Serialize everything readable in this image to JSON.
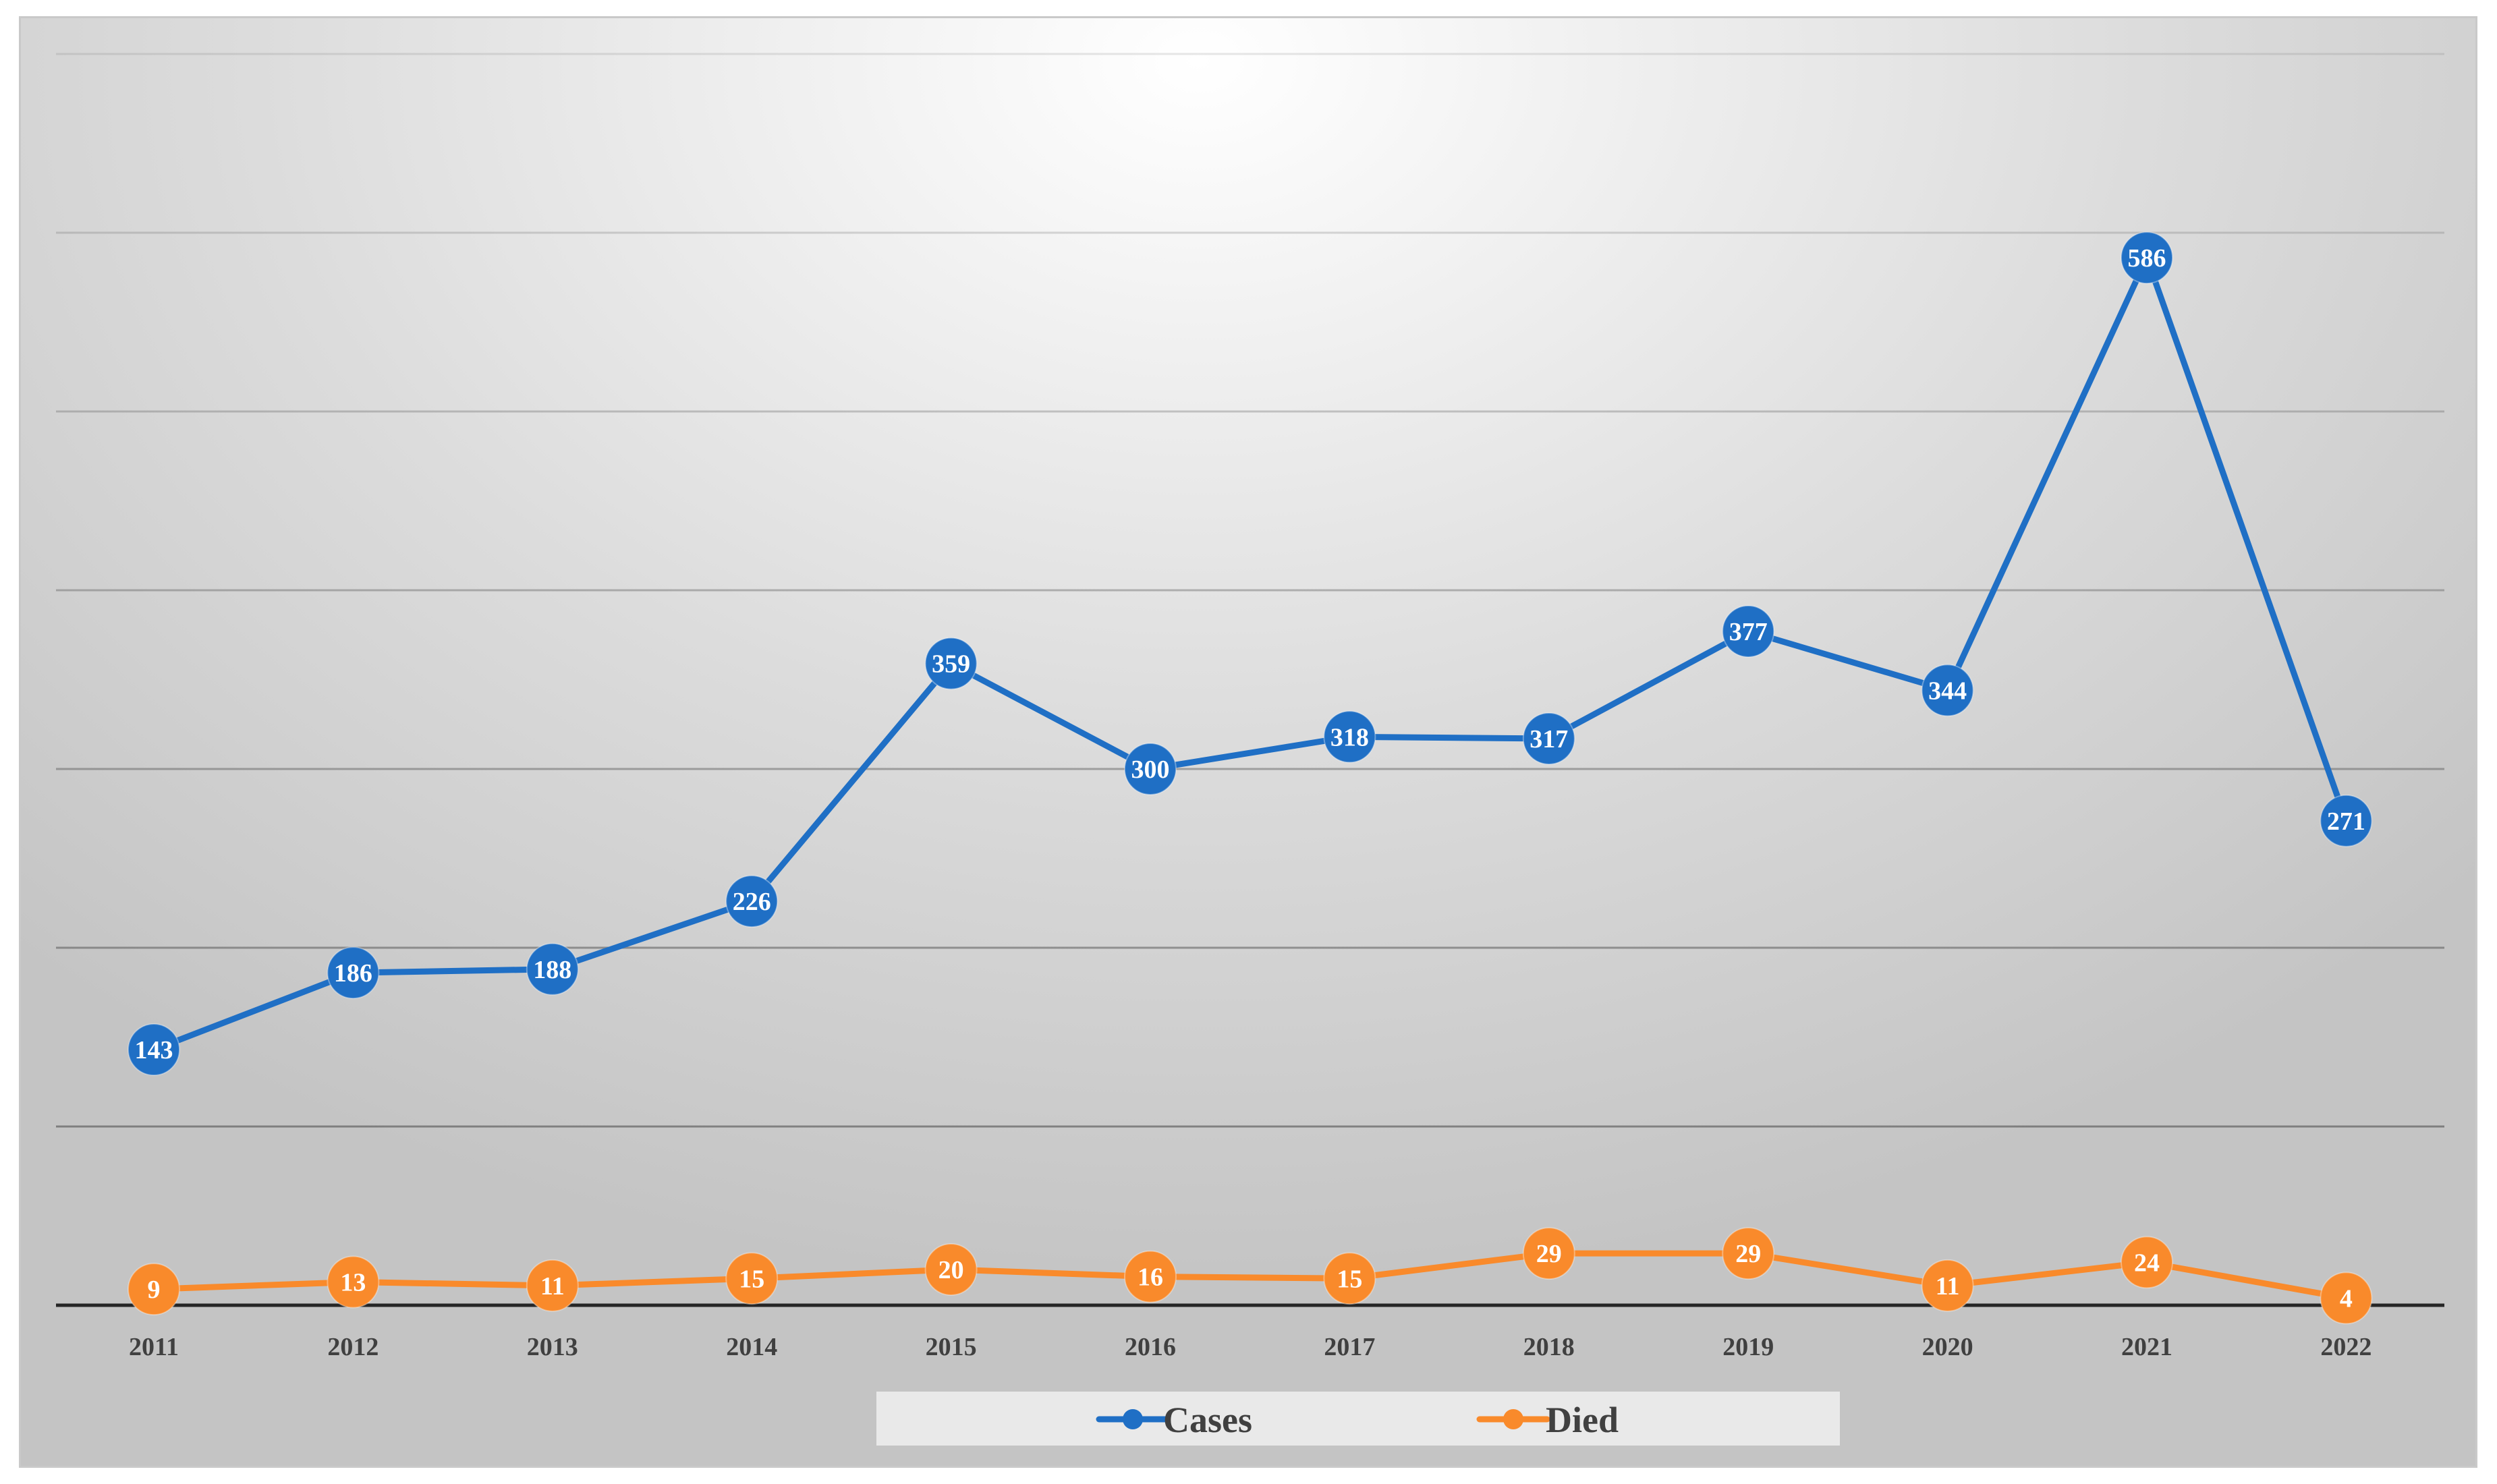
{
  "chart_data": {
    "type": "line",
    "title": "",
    "xlabel": "",
    "ylabel": "",
    "categories": [
      "2011",
      "2012",
      "2013",
      "2014",
      "2015",
      "2016",
      "2017",
      "2018",
      "2019",
      "2020",
      "2021",
      "2022"
    ],
    "ylim": [
      0,
      700
    ],
    "y_gridlines": [
      100,
      200,
      300,
      400,
      500,
      600,
      700
    ],
    "y_tick_labels_shown": false,
    "grid": true,
    "legend_position": "bottom",
    "data_labels": true,
    "series": [
      {
        "name": "Cases",
        "color": "#1f6fc5",
        "values": [
          143,
          186,
          188,
          226,
          359,
          300,
          318,
          317,
          377,
          344,
          586,
          271
        ]
      },
      {
        "name": "Died",
        "color": "#f98a2b",
        "values": [
          9,
          13,
          11,
          15,
          20,
          16,
          15,
          29,
          29,
          11,
          24,
          4
        ]
      }
    ]
  }
}
